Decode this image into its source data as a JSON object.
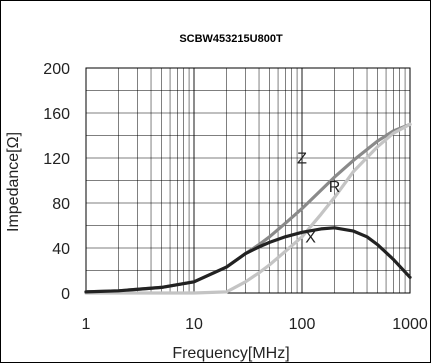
{
  "chart_data": {
    "type": "line",
    "title": "SCBW453215U800T",
    "xlabel": "Frequency[MHz]",
    "ylabel": "Impedance[Ω]",
    "xscale": "log",
    "xlim": [
      1,
      1000
    ],
    "ylim": [
      0,
      200
    ],
    "x_ticks": [
      "1",
      "10",
      "100",
      "1000"
    ],
    "y_ticks": [
      "0",
      "40",
      "80",
      "120",
      "160",
      "200"
    ],
    "grid": true,
    "series": [
      {
        "name": "Z",
        "color": "#8a8a8a",
        "x": [
          1,
          2,
          5,
          10,
          20,
          30,
          40,
          50,
          70,
          100,
          200,
          300,
          500,
          700,
          1000
        ],
        "y": [
          1,
          2,
          5,
          10,
          23,
          35,
          43,
          50,
          62,
          75,
          103,
          118,
          135,
          144,
          150
        ]
      },
      {
        "name": "R",
        "color": "#c4c4c4",
        "x": [
          1,
          10,
          20,
          30,
          40,
          50,
          70,
          100,
          150,
          200,
          300,
          500,
          700,
          1000
        ],
        "y": [
          0,
          0,
          1,
          10,
          18,
          25,
          37,
          50,
          70,
          85,
          108,
          130,
          142,
          150
        ]
      },
      {
        "name": "X",
        "color": "#222222",
        "x": [
          1,
          2,
          5,
          10,
          20,
          30,
          40,
          50,
          70,
          100,
          150,
          200,
          300,
          400,
          500,
          700,
          1000
        ],
        "y": [
          1,
          2,
          5,
          10,
          23,
          35,
          41,
          45,
          50,
          54,
          57,
          58,
          55,
          50,
          43,
          30,
          14
        ]
      }
    ],
    "series_label_positions": {
      "Z": [
        100,
        115
      ],
      "R": [
        200,
        90
      ],
      "X": [
        120,
        45
      ]
    }
  }
}
